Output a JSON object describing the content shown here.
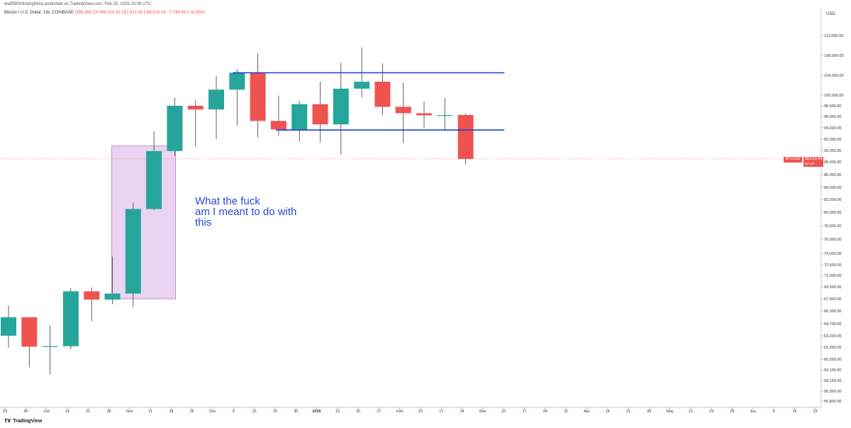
{
  "header": {
    "published": "wwf590fnfnlohgb42a published on TradingView.com, Feb 25, 2025 10:08 UTC",
    "symbol": "Bitcoin / U.S. Dollar, 1W, COINBASE",
    "ohlc": "O96,266.23 H96,515.41 L87,611.00 C88,516.04 −7,749.94 (−8.05%)"
  },
  "currency": "USD",
  "annotation": {
    "line1": "What the fuck",
    "line2": "am I meant to do with",
    "line3": "this"
  },
  "last_price": {
    "symbol": "BTCUSD",
    "price": "88,516.04",
    "countdown": "5d 14h"
  },
  "brand": "TradingView",
  "colors": {
    "up": "#26a69a",
    "down": "#ef5350",
    "channel": "#1e3fd6",
    "annotation": "#2947d6",
    "box_fill": "#e3c6ec",
    "box_stroke": "#b07cc6"
  },
  "chart_data": {
    "type": "candlestick",
    "interval": "1W",
    "y_axis_labels": [
      "112,000.00",
      "108,000.00",
      "104,000.00",
      "100,000.00",
      "98,000.00",
      "96,000.00",
      "94,000.00",
      "92,000.00",
      "90,000.00",
      "88,000.00",
      "86,000.00",
      "84,000.00",
      "82,000.00",
      "80,000.00",
      "78,000.00",
      "76,000.00",
      "74,000.00",
      "72,500.00",
      "71,000.00",
      "69,500.00",
      "67,900.00",
      "66,300.00",
      "64,700.00",
      "63,200.00",
      "61,950.00",
      "60,550.00",
      "59,150.00",
      "58,150.00",
      "56,950.00",
      "55,800.00"
    ],
    "x_axis_labels": [
      "23",
      "30",
      "Oct",
      "14",
      "21",
      "28",
      "Nov",
      "11",
      "18",
      "25",
      "Dec",
      "9",
      "16",
      "23",
      "30",
      "2025",
      "13",
      "20",
      "27",
      "Feb",
      "10",
      "17",
      "24",
      "Mar",
      "10",
      "17",
      "24",
      "31",
      "Apr",
      "14",
      "21",
      "28",
      "May",
      "12",
      "19",
      "26",
      "Jun",
      "9",
      "16",
      "23"
    ],
    "candles": [
      {
        "open": 63200,
        "high": 67000,
        "low": 61900,
        "close": 65500
      },
      {
        "open": 65500,
        "high": 65500,
        "low": 59500,
        "close": 62000
      },
      {
        "open": 62000,
        "high": 64500,
        "low": 58700,
        "close": 62050
      },
      {
        "open": 62050,
        "high": 69300,
        "low": 61700,
        "close": 68900
      },
      {
        "open": 68900,
        "high": 69400,
        "low": 65000,
        "close": 67800
      },
      {
        "open": 67800,
        "high": 73600,
        "low": 67200,
        "close": 68600
      },
      {
        "open": 68600,
        "high": 81500,
        "low": 66800,
        "close": 80500
      },
      {
        "open": 80500,
        "high": 93400,
        "low": 80300,
        "close": 89900
      },
      {
        "open": 89900,
        "high": 99500,
        "low": 89000,
        "close": 98000
      },
      {
        "open": 98000,
        "high": 99000,
        "low": 90700,
        "close": 97300
      },
      {
        "open": 97300,
        "high": 103900,
        "low": 92000,
        "close": 101100
      },
      {
        "open": 101100,
        "high": 105200,
        "low": 94400,
        "close": 104500
      },
      {
        "open": 104500,
        "high": 108400,
        "low": 92300,
        "close": 95200
      },
      {
        "open": 95200,
        "high": 99900,
        "low": 92600,
        "close": 93700
      },
      {
        "open": 93700,
        "high": 98900,
        "low": 91600,
        "close": 98300
      },
      {
        "open": 98300,
        "high": 102700,
        "low": 91400,
        "close": 94600
      },
      {
        "open": 94600,
        "high": 106500,
        "low": 89300,
        "close": 101300
      },
      {
        "open": 101300,
        "high": 109600,
        "low": 99600,
        "close": 102700
      },
      {
        "open": 102700,
        "high": 106400,
        "low": 96200,
        "close": 97800
      },
      {
        "open": 97800,
        "high": 102500,
        "low": 91300,
        "close": 96600
      },
      {
        "open": 96600,
        "high": 98800,
        "low": 94000,
        "close": 96200
      },
      {
        "open": 96200,
        "high": 99500,
        "low": 93600,
        "close": 96250
      },
      {
        "open": 96266.23,
        "high": 96515.41,
        "low": 87611,
        "close": 88516.04
      }
    ],
    "channel_lines": [
      104500,
      93600
    ],
    "highlight_box": {
      "from_week": 5,
      "to_week": 8,
      "low": 67900,
      "high": 90800
    },
    "last_price": 88516.04
  }
}
